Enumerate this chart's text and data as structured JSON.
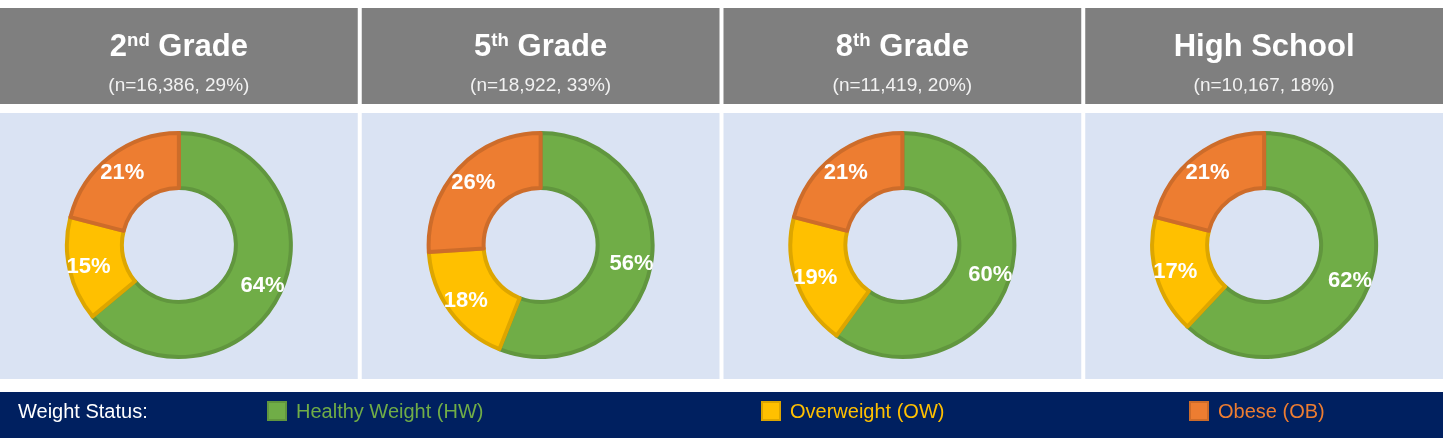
{
  "chart_data": [
    {
      "type": "donut",
      "title": "2$^{nd}$ Grade",
      "subtitle": "(n=16,386, 29%)",
      "categories": [
        "Healthy Weight (HW)",
        "Overweight (OW)",
        "Obese (OB)"
      ],
      "values": [
        64,
        15,
        21
      ],
      "value_labels": [
        "64%",
        "15%",
        "21%"
      ],
      "colors": [
        "#70ad47",
        "#ffc000",
        "#ed7d31"
      ],
      "legend": "bottom",
      "legend_title": "Weight Status:"
    },
    {
      "type": "donut",
      "title": "5$^{th}$ Grade",
      "subtitle": "(n=18,922, 33%)",
      "categories": [
        null,
        null,
        null
      ],
      "values": [
        56,
        18,
        26
      ],
      "value_labels": [
        "56%",
        "18%",
        "26%"
      ],
      "colors": [
        "#70ad47",
        "#ffc000",
        "#ed7d31"
      ]
    },
    {
      "type": "donut",
      "title": "8$^{th}$ Grade",
      "subtitle": "(n=11,419, 20%)",
      "categories": [
        null,
        null,
        null
      ],
      "values": [
        60,
        19,
        21
      ],
      "value_labels": [
        "60%",
        "19%",
        "21%"
      ],
      "colors": [
        "#70ad47",
        "#ffc000",
        "#ed7d31"
      ]
    },
    {
      "type": "donut",
      "title": "High School",
      "subtitle": "(n=10,167, 18%)",
      "categories": [
        null,
        null,
        null
      ],
      "values": [
        62,
        17,
        21
      ],
      "value_labels": [
        "62%",
        "17%",
        "21%"
      ],
      "colors": [
        "#70ad47",
        "#ffc000",
        "#ed7d31"
      ]
    }
  ]
}
